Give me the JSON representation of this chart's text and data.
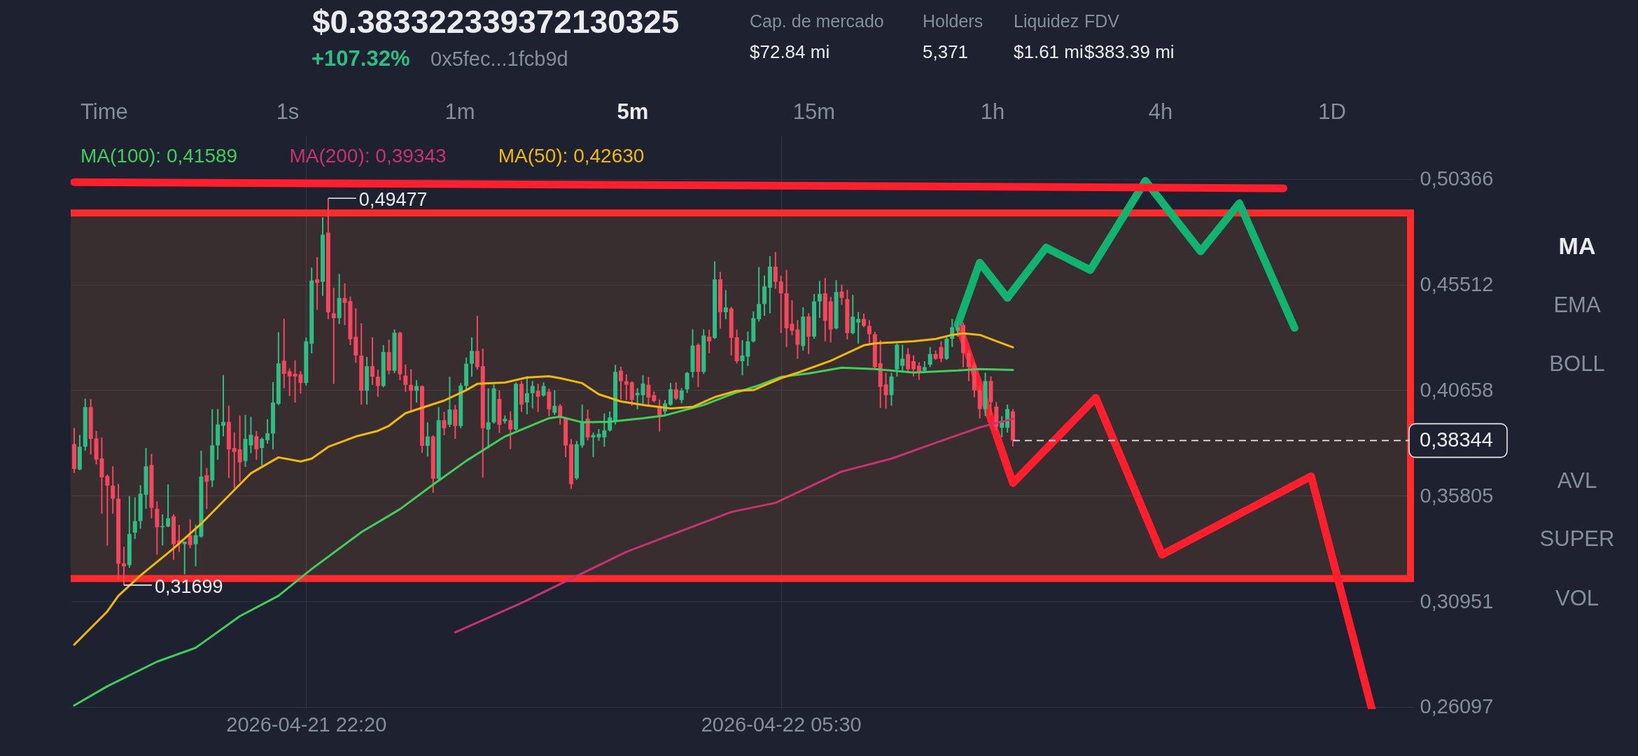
{
  "chart_data": {
    "type": "candlestick",
    "title": "$0.383322339372130325",
    "subtitle": "+107.32%",
    "x": [
      "2026-04-21T18:50",
      "2026-04-21T18:55",
      "2026-04-21T19:00",
      "2026-04-21T19:05",
      "2026-04-21T19:10",
      "2026-04-21T19:15",
      "2026-04-21T19:20",
      "2026-04-21T19:25",
      "2026-04-21T19:30",
      "2026-04-21T19:35",
      "2026-04-21T19:40",
      "2026-04-21T19:45",
      "2026-04-21T19:50",
      "2026-04-21T19:55",
      "2026-04-21T20:00",
      "2026-04-21T20:05",
      "2026-04-21T20:10",
      "2026-04-21T20:15",
      "2026-04-21T20:20",
      "2026-04-21T20:25",
      "2026-04-21T20:30",
      "2026-04-21T20:35",
      "2026-04-21T20:40",
      "2026-04-21T20:45",
      "2026-04-21T20:50",
      "2026-04-21T20:55",
      "2026-04-21T21:00",
      "2026-04-21T21:05",
      "2026-04-21T21:10",
      "2026-04-21T21:15",
      "2026-04-21T21:20",
      "2026-04-21T21:25",
      "2026-04-21T21:30",
      "2026-04-21T21:35",
      "2026-04-21T21:40",
      "2026-04-21T21:45",
      "2026-04-21T21:50",
      "2026-04-21T21:55",
      "2026-04-21T22:00",
      "2026-04-21T22:05",
      "2026-04-21T22:10",
      "2026-04-21T22:15",
      "2026-04-21T22:20",
      "2026-04-21T22:25",
      "2026-04-21T22:30",
      "2026-04-21T22:35",
      "2026-04-21T22:40",
      "2026-04-21T22:45",
      "2026-04-21T22:50",
      "2026-04-21T22:55",
      "2026-04-21T23:00",
      "2026-04-21T23:05",
      "2026-04-21T23:10",
      "2026-04-21T23:15",
      "2026-04-21T23:20",
      "2026-04-21T23:25",
      "2026-04-21T23:30",
      "2026-04-21T23:35",
      "2026-04-21T23:40",
      "2026-04-21T23:45",
      "2026-04-21T23:50",
      "2026-04-21T23:55",
      "2026-04-22T00:00",
      "2026-04-22T00:05",
      "2026-04-22T00:10",
      "2026-04-22T00:15",
      "2026-04-22T00:20",
      "2026-04-22T00:25",
      "2026-04-22T00:30",
      "2026-04-22T00:35",
      "2026-04-22T00:40",
      "2026-04-22T00:45",
      "2026-04-22T00:50",
      "2026-04-22T00:55",
      "2026-04-22T01:00",
      "2026-04-22T01:05",
      "2026-04-22T01:10",
      "2026-04-22T01:15",
      "2026-04-22T01:20",
      "2026-04-22T01:25",
      "2026-04-22T01:30",
      "2026-04-22T01:35",
      "2026-04-22T01:40",
      "2026-04-22T01:45",
      "2026-04-22T01:50",
      "2026-04-22T01:55",
      "2026-04-22T02:00",
      "2026-04-22T02:05",
      "2026-04-22T02:10",
      "2026-04-22T02:15",
      "2026-04-22T02:20",
      "2026-04-22T02:25",
      "2026-04-22T02:30",
      "2026-04-22T02:35",
      "2026-04-22T02:40",
      "2026-04-22T02:45",
      "2026-04-22T02:50",
      "2026-04-22T02:55",
      "2026-04-22T03:00",
      "2026-04-22T03:05",
      "2026-04-22T03:10",
      "2026-04-22T03:15",
      "2026-04-22T03:20",
      "2026-04-22T03:25",
      "2026-04-22T03:30",
      "2026-04-22T03:35",
      "2026-04-22T03:40",
      "2026-04-22T03:45",
      "2026-04-22T03:50",
      "2026-04-22T03:55",
      "2026-04-22T04:00",
      "2026-04-22T04:05",
      "2026-04-22T04:10",
      "2026-04-22T04:15",
      "2026-04-22T04:20",
      "2026-04-22T04:25",
      "2026-04-22T04:30",
      "2026-04-22T04:35",
      "2026-04-22T04:40",
      "2026-04-22T04:45",
      "2026-04-22T04:50",
      "2026-04-22T04:55",
      "2026-04-22T05:00",
      "2026-04-22T05:05",
      "2026-04-22T05:10",
      "2026-04-22T05:15",
      "2026-04-22T05:20",
      "2026-04-22T05:25",
      "2026-04-22T05:30",
      "2026-04-22T05:35",
      "2026-04-22T05:40",
      "2026-04-22T05:45",
      "2026-04-22T05:50",
      "2026-04-22T05:55",
      "2026-04-22T06:00",
      "2026-04-22T06:05",
      "2026-04-22T06:10",
      "2026-04-22T06:15",
      "2026-04-22T06:20",
      "2026-04-22T06:25",
      "2026-04-22T06:30",
      "2026-04-22T06:35",
      "2026-04-22T06:40",
      "2026-04-22T06:45",
      "2026-04-22T06:50",
      "2026-04-22T06:55",
      "2026-04-22T07:00",
      "2026-04-22T07:05",
      "2026-04-22T07:10",
      "2026-04-22T07:15",
      "2026-04-22T07:20",
      "2026-04-22T07:25",
      "2026-04-22T07:30",
      "2026-04-22T07:35",
      "2026-04-22T07:40",
      "2026-04-22T07:45",
      "2026-04-22T07:50",
      "2026-04-22T07:55",
      "2026-04-22T08:00",
      "2026-04-22T08:05",
      "2026-04-22T08:10",
      "2026-04-22T08:15",
      "2026-04-22T08:20",
      "2026-04-22T08:25",
      "2026-04-22T08:30",
      "2026-04-22T08:35",
      "2026-04-22T08:40",
      "2026-04-22T08:45",
      "2026-04-22T08:50",
      "2026-04-22T08:55",
      "2026-04-22T09:00"
    ],
    "ohlc": [
      [
        0.3818,
        0.3892,
        0.3686,
        0.3704
      ],
      [
        0.3701,
        0.386,
        0.3698,
        0.3806
      ],
      [
        0.3806,
        0.4027,
        0.3788,
        0.3988
      ],
      [
        0.3988,
        0.4024,
        0.377,
        0.3842
      ],
      [
        0.3844,
        0.3878,
        0.3725,
        0.3746
      ],
      [
        0.3752,
        0.3848,
        0.3498,
        0.3665
      ],
      [
        0.3671,
        0.3678,
        0.3352,
        0.3627
      ],
      [
        0.3627,
        0.3716,
        0.3498,
        0.3567
      ],
      [
        0.3567,
        0.3635,
        0.3195,
        0.3268
      ],
      [
        0.327,
        0.3346,
        0.31699,
        0.3256
      ],
      [
        0.3262,
        0.3579,
        0.325,
        0.3405
      ],
      [
        0.3411,
        0.3573,
        0.3382,
        0.3464
      ],
      [
        0.3464,
        0.3629,
        0.3429,
        0.359
      ],
      [
        0.3585,
        0.38,
        0.3521,
        0.3716
      ],
      [
        0.3722,
        0.3773,
        0.3477,
        0.3525
      ],
      [
        0.3521,
        0.3555,
        0.331,
        0.3436
      ],
      [
        0.3436,
        0.3495,
        0.3352,
        0.3441
      ],
      [
        0.3439,
        0.3633,
        0.3436,
        0.3477
      ],
      [
        0.3486,
        0.3495,
        0.3286,
        0.3358
      ],
      [
        0.3376,
        0.3447,
        0.3322,
        0.3361
      ],
      [
        0.3358,
        0.337,
        0.322,
        0.337
      ],
      [
        0.3399,
        0.3471,
        0.334,
        0.3354
      ],
      [
        0.3358,
        0.3447,
        0.3256,
        0.3399
      ],
      [
        0.3393,
        0.3788,
        0.3388,
        0.3669
      ],
      [
        0.3675,
        0.3708,
        0.3519,
        0.3645
      ],
      [
        0.3651,
        0.3979,
        0.3621,
        0.3812
      ],
      [
        0.3812,
        0.3979,
        0.3746,
        0.3908
      ],
      [
        0.3902,
        0.4135,
        0.3854,
        0.392
      ],
      [
        0.392,
        0.3995,
        0.3663,
        0.3794
      ],
      [
        0.38,
        0.3872,
        0.3615,
        0.3782
      ],
      [
        0.3794,
        0.395,
        0.3645,
        0.3734
      ],
      [
        0.374,
        0.3952,
        0.3713,
        0.3842
      ],
      [
        0.3812,
        0.3944,
        0.3776,
        0.386
      ],
      [
        0.3854,
        0.3878,
        0.3746,
        0.3794
      ],
      [
        0.38,
        0.3848,
        0.372,
        0.3842
      ],
      [
        0.3836,
        0.3932,
        0.382,
        0.3868
      ],
      [
        0.3866,
        0.4103,
        0.3794,
        0.4009
      ],
      [
        0.4003,
        0.4332,
        0.3997,
        0.4189
      ],
      [
        0.4201,
        0.4394,
        0.4075,
        0.4141
      ],
      [
        0.4153,
        0.4165,
        0.4039,
        0.4129
      ],
      [
        0.4141,
        0.4203,
        0.4009,
        0.4129
      ],
      [
        0.4139,
        0.4153,
        0.4051,
        0.4099
      ],
      [
        0.4099,
        0.4308,
        0.4087,
        0.429
      ],
      [
        0.4279,
        0.4629,
        0.4235,
        0.457
      ],
      [
        0.4575,
        0.4677,
        0.4435,
        0.4559
      ],
      [
        0.4564,
        0.486,
        0.4499,
        0.478
      ],
      [
        0.479,
        0.49477,
        0.4392,
        0.4424
      ],
      [
        0.4419,
        0.4537,
        0.4095,
        0.4397
      ],
      [
        0.4397,
        0.46,
        0.437,
        0.4489
      ],
      [
        0.4489,
        0.4557,
        0.4365,
        0.4467
      ],
      [
        0.4475,
        0.4496,
        0.4273,
        0.43
      ],
      [
        0.4311,
        0.4442,
        0.4192,
        0.4225
      ],
      [
        0.4225,
        0.4373,
        0.4,
        0.4063
      ],
      [
        0.4063,
        0.4219,
        0.4,
        0.4176
      ],
      [
        0.4176,
        0.4309,
        0.409,
        0.4128
      ],
      [
        0.4128,
        0.416,
        0.4036,
        0.4085
      ],
      [
        0.4085,
        0.4273,
        0.4079,
        0.4241
      ],
      [
        0.4241,
        0.4298,
        0.4139,
        0.4155
      ],
      [
        0.4155,
        0.4345,
        0.4144,
        0.433
      ],
      [
        0.433,
        0.4335,
        0.4112,
        0.4139
      ],
      [
        0.4133,
        0.4184,
        0.4058,
        0.409
      ],
      [
        0.409,
        0.4162,
        0.3971,
        0.4063
      ],
      [
        0.4063,
        0.4112,
        0.4009,
        0.4085
      ],
      [
        0.4085,
        0.4087,
        0.3778,
        0.381
      ],
      [
        0.381,
        0.3918,
        0.3761,
        0.3853
      ],
      [
        0.3853,
        0.3858,
        0.3594,
        0.3659
      ],
      [
        0.3659,
        0.3988,
        0.3648,
        0.3928
      ],
      [
        0.3928,
        0.3966,
        0.3858,
        0.3891
      ],
      [
        0.3907,
        0.4128,
        0.3896,
        0.3977
      ],
      [
        0.3977,
        0.3998,
        0.3842,
        0.3901
      ],
      [
        0.3901,
        0.4098,
        0.3891,
        0.4087
      ],
      [
        0.4085,
        0.4216,
        0.4063,
        0.4187
      ],
      [
        0.4187,
        0.4309,
        0.4128,
        0.4246
      ],
      [
        0.4246,
        0.4408,
        0.416,
        0.4171
      ],
      [
        0.4176,
        0.4257,
        0.3664,
        0.3891
      ],
      [
        0.3885,
        0.4074,
        0.3799,
        0.3918
      ],
      [
        0.3918,
        0.4095,
        0.3912,
        0.4074
      ],
      [
        0.4025,
        0.4065,
        0.3869,
        0.3907
      ],
      [
        0.3923,
        0.395,
        0.3912,
        0.3934
      ],
      [
        0.3928,
        0.3968,
        0.3796,
        0.3885
      ],
      [
        0.3885,
        0.4101,
        0.388,
        0.4095
      ],
      [
        0.4095,
        0.4108,
        0.3966,
        0.4
      ],
      [
        0.4009,
        0.413,
        0.3955,
        0.4052
      ],
      [
        0.4052,
        0.4108,
        0.3982,
        0.4085
      ],
      [
        0.4063,
        0.4095,
        0.3966,
        0.4036
      ],
      [
        0.4041,
        0.4101,
        0.4036,
        0.4085
      ],
      [
        0.4059,
        0.4073,
        0.3946,
        0.3978
      ],
      [
        0.3962,
        0.4066,
        0.3951,
        0.3994
      ],
      [
        0.3994,
        0.4002,
        0.3908,
        0.3946
      ],
      [
        0.3935,
        0.3941,
        0.3758,
        0.3812
      ],
      [
        0.3817,
        0.3841,
        0.3613,
        0.3634
      ],
      [
        0.3661,
        0.3833,
        0.3654,
        0.3817
      ],
      [
        0.3812,
        0.4,
        0.3801,
        0.3916
      ],
      [
        0.3935,
        0.3976,
        0.3835,
        0.3849
      ],
      [
        0.3849,
        0.3871,
        0.3758,
        0.386
      ],
      [
        0.3849,
        0.3887,
        0.3833,
        0.3865
      ],
      [
        0.3849,
        0.3959,
        0.3806,
        0.3881
      ],
      [
        0.3881,
        0.3968,
        0.3876,
        0.3941
      ],
      [
        0.3919,
        0.4182,
        0.3908,
        0.415
      ],
      [
        0.4156,
        0.4174,
        0.4023,
        0.4107
      ],
      [
        0.4107,
        0.4139,
        0.4021,
        0.4091
      ],
      [
        0.4102,
        0.4107,
        0.3994,
        0.4021
      ],
      [
        0.4043,
        0.4075,
        0.3978,
        0.4053
      ],
      [
        0.4043,
        0.4134,
        0.3994,
        0.4096
      ],
      [
        0.4091,
        0.4127,
        0.3999,
        0.4032
      ],
      [
        0.4043,
        0.4059,
        0.401,
        0.4016
      ],
      [
        0.3994,
        0.4023,
        0.3876,
        0.3951
      ],
      [
        0.3968,
        0.4021,
        0.3951,
        0.4005
      ],
      [
        0.3999,
        0.4099,
        0.3994,
        0.407
      ],
      [
        0.407,
        0.4102,
        0.4021,
        0.4027
      ],
      [
        0.4021,
        0.4075,
        0.4005,
        0.4064
      ],
      [
        0.407,
        0.415,
        0.4053,
        0.4145
      ],
      [
        0.415,
        0.4346,
        0.4123,
        0.4271
      ],
      [
        0.4274,
        0.4281,
        0.408,
        0.415
      ],
      [
        0.415,
        0.4346,
        0.414,
        0.4317
      ],
      [
        0.4312,
        0.4344,
        0.4236,
        0.429
      ],
      [
        0.4306,
        0.4658,
        0.4301,
        0.4575
      ],
      [
        0.4575,
        0.461,
        0.4349,
        0.4424
      ],
      [
        0.4424,
        0.4526,
        0.4392,
        0.4446
      ],
      [
        0.4441,
        0.4449,
        0.4225,
        0.4306
      ],
      [
        0.4309,
        0.4344,
        0.4188,
        0.4199
      ],
      [
        0.4199,
        0.4295,
        0.4134,
        0.4225
      ],
      [
        0.422,
        0.4335,
        0.4177,
        0.429
      ],
      [
        0.429,
        0.4428,
        0.4285,
        0.4397
      ],
      [
        0.4392,
        0.4632,
        0.4381,
        0.4462
      ],
      [
        0.4462,
        0.4593,
        0.4408,
        0.4543
      ],
      [
        0.4537,
        0.4682,
        0.4419,
        0.4634
      ],
      [
        0.4634,
        0.4701,
        0.4532,
        0.4564
      ],
      [
        0.4565,
        0.4592,
        0.4328,
        0.4511
      ],
      [
        0.4511,
        0.4619,
        0.4264,
        0.435
      ],
      [
        0.4371,
        0.4479,
        0.4318,
        0.4339
      ],
      [
        0.4345,
        0.4388,
        0.421,
        0.4275
      ],
      [
        0.4269,
        0.4447,
        0.4248,
        0.4404
      ],
      [
        0.4404,
        0.442,
        0.4232,
        0.4312
      ],
      [
        0.4312,
        0.4508,
        0.4302,
        0.4474
      ],
      [
        0.4474,
        0.4568,
        0.4398,
        0.4508
      ],
      [
        0.4511,
        0.4581,
        0.4291,
        0.4385
      ],
      [
        0.4474,
        0.4495,
        0.4285,
        0.4345
      ],
      [
        0.435,
        0.4571,
        0.4345,
        0.4517
      ],
      [
        0.4519,
        0.4551,
        0.4458,
        0.449
      ],
      [
        0.4484,
        0.4527,
        0.4299,
        0.4328
      ],
      [
        0.4328,
        0.4504,
        0.4323,
        0.4404
      ],
      [
        0.4377,
        0.4425,
        0.428,
        0.4393
      ],
      [
        0.4393,
        0.4418,
        0.4355,
        0.4361
      ],
      [
        0.4361,
        0.4388,
        0.4275,
        0.4323
      ],
      [
        0.4323,
        0.4334,
        0.4167,
        0.4172
      ],
      [
        0.4189,
        0.4296,
        0.3984,
        0.4081
      ],
      [
        0.4092,
        0.4146,
        0.3981,
        0.4043
      ],
      [
        0.4043,
        0.4146,
        0.3995,
        0.4129
      ],
      [
        0.4162,
        0.428,
        0.4129,
        0.4275
      ],
      [
        0.4178,
        0.4275,
        0.4151,
        0.421
      ],
      [
        0.4232,
        0.4259,
        0.4151,
        0.4162
      ],
      [
        0.4199,
        0.4226,
        0.4129,
        0.4162
      ],
      [
        0.4178,
        0.4194,
        0.4113,
        0.4146
      ],
      [
        0.4156,
        0.4199,
        0.4146,
        0.4172
      ],
      [
        0.4183,
        0.4264,
        0.4172,
        0.4232
      ],
      [
        0.4232,
        0.4248,
        0.4205,
        0.421
      ],
      [
        0.4264,
        0.4291,
        0.4194,
        0.421
      ],
      [
        0.421,
        0.4318,
        0.4205,
        0.4302
      ],
      [
        0.4302,
        0.4393,
        0.4264,
        0.4355
      ],
      [
        0.4339,
        0.4382,
        0.4312,
        0.4355
      ],
      [
        0.4366,
        0.4377,
        0.4172,
        0.4237
      ],
      [
        0.4237,
        0.4248,
        0.4108,
        0.4172
      ],
      [
        0.4183,
        0.4194,
        0.4033,
        0.4065
      ],
      [
        0.4065,
        0.4086,
        0.3936,
        0.3979
      ],
      [
        0.3979,
        0.4146,
        0.3947,
        0.4108
      ],
      [
        0.4108,
        0.4129,
        0.3952,
        0.4011
      ],
      [
        0.399,
        0.4011,
        0.3882,
        0.3898
      ],
      [
        0.3893,
        0.3947,
        0.385,
        0.3925
      ],
      [
        0.3893,
        0.4,
        0.3871,
        0.3979
      ],
      [
        0.3968,
        0.3979,
        0.3807,
        0.38344
      ]
    ],
    "colors": [
      "#f6465d",
      "#2ebd85",
      "#2ebd85",
      "#f6465d",
      "#f6465d",
      "#f6465d",
      "#f6465d",
      "#f6465d",
      "#f6465d",
      "#f6465d",
      "#2ebd85",
      "#2ebd85",
      "#2ebd85",
      "#2ebd85",
      "#f6465d",
      "#f6465d",
      "#2ebd85",
      "#2ebd85",
      "#f6465d",
      "#f6465d",
      "#2ebd85",
      "#f6465d",
      "#2ebd85",
      "#2ebd85",
      "#f6465d",
      "#2ebd85",
      "#2ebd85",
      "#2ebd85",
      "#f6465d",
      "#f6465d",
      "#f6465d",
      "#2ebd85",
      "#2ebd85",
      "#f6465d",
      "#2ebd85",
      "#2ebd85",
      "#2ebd85",
      "#2ebd85",
      "#f6465d",
      "#f6465d",
      "#f6465d",
      "#f6465d",
      "#2ebd85",
      "#2ebd85",
      "#f6465d",
      "#2ebd85",
      "#f6465d",
      "#f6465d",
      "#2ebd85",
      "#f6465d",
      "#f6465d",
      "#f6465d",
      "#f6465d",
      "#2ebd85",
      "#f6465d",
      "#f6465d",
      "#2ebd85",
      "#f6465d",
      "#2ebd85",
      "#f6465d",
      "#f6465d",
      "#f6465d",
      "#2ebd85",
      "#f6465d",
      "#2ebd85",
      "#f6465d",
      "#2ebd85",
      "#f6465d",
      "#2ebd85",
      "#f6465d",
      "#2ebd85",
      "#2ebd85",
      "#2ebd85",
      "#f6465d",
      "#f6465d",
      "#2ebd85",
      "#2ebd85",
      "#f6465d",
      "#2ebd85",
      "#f6465d",
      "#2ebd85",
      "#f6465d",
      "#2ebd85",
      "#2ebd85",
      "#f6465d",
      "#2ebd85",
      "#f6465d",
      "#2ebd85",
      "#f6465d",
      "#f6465d",
      "#f6465d",
      "#2ebd85",
      "#2ebd85",
      "#f6465d",
      "#2ebd85",
      "#2ebd85",
      "#2ebd85",
      "#2ebd85",
      "#2ebd85",
      "#f6465d",
      "#f6465d",
      "#f6465d",
      "#2ebd85",
      "#2ebd85",
      "#f6465d",
      "#f6465d",
      "#f6465d",
      "#2ebd85",
      "#2ebd85",
      "#f6465d",
      "#2ebd85",
      "#2ebd85",
      "#2ebd85",
      "#f6465d",
      "#2ebd85",
      "#f6465d",
      "#2ebd85",
      "#f6465d",
      "#2ebd85",
      "#f6465d",
      "#f6465d",
      "#2ebd85",
      "#2ebd85",
      "#2ebd85",
      "#2ebd85",
      "#2ebd85",
      "#2ebd85",
      "#f6465d",
      "#f6465d",
      "#f6465d",
      "#f6465d",
      "#f6465d",
      "#2ebd85",
      "#f6465d",
      "#2ebd85",
      "#2ebd85",
      "#f6465d",
      "#f6465d",
      "#2ebd85",
      "#f6465d",
      "#f6465d",
      "#2ebd85",
      "#2ebd85",
      "#f6465d",
      "#f6465d",
      "#f6465d",
      "#f6465d",
      "#f6465d",
      "#2ebd85",
      "#2ebd85",
      "#2ebd85",
      "#f6465d",
      "#f6465d",
      "#f6465d",
      "#2ebd85",
      "#2ebd85",
      "#f6465d",
      "#f6465d",
      "#2ebd85",
      "#2ebd85",
      "#2ebd85",
      "#f6465d",
      "#f6465d",
      "#f6465d",
      "#f6465d",
      "#2ebd85",
      "#f6465d",
      "#f6465d",
      "#2ebd85",
      "#2ebd85",
      "#f6465d"
    ],
    "series": [
      {
        "name": "MA(100): 0,41589",
        "type": "line",
        "color": "#3fcf5a",
        "x": [
          "2026-04-21T18:50",
          "2026-04-21T19:20",
          "2026-04-21T20:05",
          "2026-04-21T20:40",
          "2026-04-21T21:20",
          "2026-04-21T21:55",
          "2026-04-21T22:25",
          "2026-04-21T23:10",
          "2026-04-21T23:45",
          "2026-04-22T00:15",
          "2026-04-22T00:45",
          "2026-04-22T01:20",
          "2026-04-22T02:00",
          "2026-04-22T02:10",
          "2026-04-22T02:30",
          "2026-04-22T02:55",
          "2026-04-22T03:25",
          "2026-04-22T03:45",
          "2026-04-22T04:20",
          "2026-04-22T04:50",
          "2026-04-22T05:10",
          "2026-04-22T05:30",
          "2026-04-22T05:55",
          "2026-04-22T06:25",
          "2026-04-22T06:55",
          "2026-04-22T07:30",
          "2026-04-22T08:10",
          "2026-04-22T08:30",
          "2026-04-22T09:00"
        ],
        "values": [
          0.2617,
          0.2705,
          0.2818,
          0.2882,
          0.3027,
          0.3121,
          0.3244,
          0.3413,
          0.3519,
          0.3632,
          0.3741,
          0.3853,
          0.3937,
          0.3944,
          0.3918,
          0.3921,
          0.3937,
          0.395,
          0.3998,
          0.4056,
          0.4088,
          0.4127,
          0.4143,
          0.4169,
          0.4163,
          0.4147,
          0.4156,
          0.4163,
          0.4159
        ]
      },
      {
        "name": "MA(200): 0,39343",
        "type": "line",
        "color": "#c8336f",
        "x": [
          "2026-04-22T00:35",
          "2026-04-22T01:35",
          "2026-04-22T03:10",
          "2026-04-22T04:45",
          "2026-04-22T05:25",
          "2026-04-22T06:25",
          "2026-04-22T07:10",
          "2026-04-22T07:50",
          "2026-04-22T08:30",
          "2026-04-22T09:00"
        ],
        "values": [
          0.2953,
          0.3088,
          0.3323,
          0.3506,
          0.3548,
          0.3692,
          0.3751,
          0.3824,
          0.3895,
          0.3934
        ]
      },
      {
        "name": "MA(50): 0,42630",
        "type": "line",
        "color": "#f0b90b",
        "x": [
          "2026-04-21T18:50",
          "2026-04-21T19:20",
          "2026-04-21T19:30",
          "2026-04-21T19:50",
          "2026-04-21T20:20",
          "2026-04-21T20:45",
          "2026-04-21T21:15",
          "2026-04-21T21:30",
          "2026-04-21T21:55",
          "2026-04-21T22:15",
          "2026-04-21T22:25",
          "2026-04-21T22:40",
          "2026-04-21T23:05",
          "2026-04-21T23:25",
          "2026-04-21T23:35",
          "2026-04-21T23:50",
          "2026-04-22T00:05",
          "2026-04-22T00:25",
          "2026-04-22T00:45",
          "2026-04-22T00:55",
          "2026-04-22T01:20",
          "2026-04-22T01:40",
          "2026-04-22T02:00",
          "2026-04-22T02:10",
          "2026-04-22T02:30",
          "2026-04-22T02:45",
          "2026-04-22T03:05",
          "2026-04-22T03:25",
          "2026-04-22T03:50",
          "2026-04-22T04:10",
          "2026-04-22T04:30",
          "2026-04-22T04:50",
          "2026-04-22T05:05",
          "2026-04-22T05:30",
          "2026-04-22T05:45",
          "2026-04-22T06:15",
          "2026-04-22T06:45",
          "2026-04-22T06:55",
          "2026-04-22T07:30",
          "2026-04-22T07:50",
          "2026-04-22T08:05",
          "2026-04-22T08:15",
          "2026-04-22T08:30",
          "2026-04-22T08:45",
          "2026-04-22T09:00"
        ],
        "values": [
          0.2896,
          0.3049,
          0.3121,
          0.3214,
          0.3339,
          0.3452,
          0.3607,
          0.3684,
          0.3757,
          0.3738,
          0.3751,
          0.3805,
          0.3853,
          0.3879,
          0.3902,
          0.396,
          0.3985,
          0.4018,
          0.4066,
          0.4095,
          0.4101,
          0.4124,
          0.413,
          0.4121,
          0.4098,
          0.4047,
          0.4014,
          0.3998,
          0.3982,
          0.3989,
          0.4034,
          0.4063,
          0.4066,
          0.4121,
          0.4146,
          0.4201,
          0.4272,
          0.4281,
          0.4291,
          0.4301,
          0.432,
          0.4327,
          0.432,
          0.4291,
          0.4263
        ]
      },
      {
        "type": "line",
        "color": "#10b470",
        "x": [
          "2026-04-22T08:10",
          "2026-04-22T08:30",
          "2026-04-22T08:55",
          "2026-04-22T09:30",
          "2026-04-22T10:10",
          "2026-04-22T11:00",
          "2026-04-22T11:50",
          "2026-04-22T12:25",
          "2026-04-22T13:15"
        ],
        "values": [
          0.4367,
          0.4652,
          0.449,
          0.4721,
          0.4618,
          0.5028,
          0.4704,
          0.4925,
          0.4352
        ]
      },
      {
        "type": "line",
        "color": "#ff1f2c",
        "x": [
          "2026-04-22T08:12",
          "2026-04-22T09:00",
          "2026-04-22T10:15",
          "2026-04-22T11:15",
          "2026-04-22T13:30",
          "2026-04-22T14:25"
        ],
        "values": [
          0.4346,
          0.3639,
          0.4031,
          0.331,
          0.367,
          0.26
        ]
      },
      {
        "type": "line",
        "color": "#ff1f2c",
        "x": [
          "2026-04-21T18:50",
          "2026-04-22T13:05"
        ],
        "values": [
          0.5022,
          0.4994
        ]
      }
    ],
    "xlim": [
      "2026-04-21T18:50",
      "2026-04-22T15:00"
    ],
    "xticks": [
      {
        "value": "2026-04-21T22:20",
        "label": "2026-04-21 22:20"
      },
      {
        "value": "2026-04-22T05:30",
        "label": "2026-04-22 05:30"
      }
    ],
    "ylim": [
      0.26,
      0.5235
    ],
    "yticks": [
      {
        "value": 0.50366,
        "label": "0,50366"
      },
      {
        "value": 0.45512,
        "label": "0,45512"
      },
      {
        "value": 0.40658,
        "label": "0,40658"
      },
      {
        "value": 0.35805,
        "label": "0,35805"
      },
      {
        "value": 0.30951,
        "label": "0,30951"
      },
      {
        "value": 0.26097,
        "label": "0,26097"
      }
    ],
    "grid": true,
    "legend": "top left",
    "bands": [
      {
        "axis": "y",
        "from": 0.32,
        "to": 0.488,
        "color": "#ff2b2b"
      }
    ],
    "ref_lines": [
      {
        "axis": "y",
        "value": 0.38344,
        "label": "0,38344",
        "color": "#e6e8ea",
        "line_style": "dashed"
      }
    ],
    "annotations": [
      "0x5fec...1fcb9d",
      "Cap. de mercado",
      "$72.84 mi",
      "Holders",
      "5,371",
      "Liquidez",
      "$1.61 mi",
      "FDV",
      "$383.39 mi",
      "Time",
      "1s",
      "1m",
      "5m",
      "15m",
      "1h",
      "4h",
      "1D",
      "MA",
      "EMA",
      "BOLL",
      "AVL",
      "SUPER",
      "VOL",
      {
        "text": "0,49477",
        "x": "2026-04-21T22:40",
        "y": 0.49477
      },
      {
        "text": "0,31699",
        "x": "2026-04-21T19:35",
        "y": 0.31699
      }
    ]
  }
}
